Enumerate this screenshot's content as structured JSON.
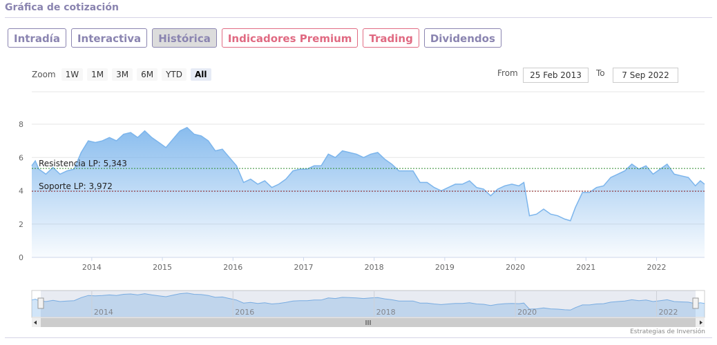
{
  "header": {
    "title": "Gráfica de cotización"
  },
  "tabs": [
    {
      "label": "Intradía",
      "active": false,
      "premium": false
    },
    {
      "label": "Interactiva",
      "active": false,
      "premium": false
    },
    {
      "label": "Histórica",
      "active": true,
      "premium": false
    },
    {
      "label": "Indicadores Premium",
      "active": false,
      "premium": true
    },
    {
      "label": "Trading",
      "active": false,
      "premium": true
    },
    {
      "label": "Dividendos",
      "active": false,
      "premium": false
    }
  ],
  "zoom": {
    "label": "Zoom",
    "buttons": [
      "1W",
      "1M",
      "3M",
      "6M",
      "YTD",
      "All"
    ],
    "active": "All"
  },
  "range": {
    "from_label": "From",
    "from_value": "25 Feb 2013",
    "to_label": "To",
    "to_value": "7 Sep 2022"
  },
  "credit": "Estrategias de Inversión",
  "colors": {
    "accent": "#8a84b0",
    "premium": "#e06a82",
    "area": "#7cb5ec",
    "resistance": "#2e8b2e",
    "support": "#8b1a1a"
  },
  "chart_data": {
    "type": "area",
    "ylim": [
      0,
      8
    ],
    "y_ticks": [
      "0",
      "2",
      "4",
      "6",
      "8"
    ],
    "x_ticks": [
      "2014",
      "2015",
      "2016",
      "2017",
      "2018",
      "2019",
      "2020",
      "2021",
      "2022"
    ],
    "navigator_ticks": [
      "2014",
      "2016",
      "2018",
      "2020",
      "2022"
    ],
    "x_range": [
      2013.15,
      2022.68
    ],
    "grid": true,
    "annotations": [
      {
        "label": "Resistencia LP: 5,343",
        "value": 5.343,
        "color": "#2e8b2e"
      },
      {
        "label": "Soporte LP: 3,972",
        "value": 3.972,
        "color": "#8b1a1a"
      }
    ],
    "series": [
      {
        "x": [
          2013.15,
          2013.2,
          2013.25,
          2013.35,
          2013.45,
          2013.55,
          2013.65,
          2013.75,
          2013.85,
          2013.95,
          2014.05,
          2014.15,
          2014.25,
          2014.35,
          2014.45,
          2014.55,
          2014.65,
          2014.75,
          2014.85,
          2014.95,
          2015.05,
          2015.15,
          2015.25,
          2015.35,
          2015.45,
          2015.55,
          2015.65,
          2015.75,
          2015.85,
          2015.95,
          2016.05,
          2016.15,
          2016.25,
          2016.35,
          2016.45,
          2016.55,
          2016.65,
          2016.75,
          2016.85,
          2016.95,
          2017.05,
          2017.15,
          2017.25,
          2017.35,
          2017.45,
          2017.55,
          2017.65,
          2017.75,
          2017.85,
          2017.95,
          2018.05,
          2018.15,
          2018.25,
          2018.35,
          2018.45,
          2018.55,
          2018.65,
          2018.75,
          2018.85,
          2018.95,
          2019.05,
          2019.15,
          2019.25,
          2019.35,
          2019.45,
          2019.55,
          2019.65,
          2019.75,
          2019.85,
          2019.95,
          2020.05,
          2020.12,
          2020.2,
          2020.3,
          2020.4,
          2020.5,
          2020.6,
          2020.7,
          2020.78,
          2020.85,
          2020.95,
          2021.05,
          2021.15,
          2021.25,
          2021.35,
          2021.45,
          2021.55,
          2021.65,
          2021.75,
          2021.85,
          2021.95,
          2022.05,
          2022.15,
          2022.25,
          2022.35,
          2022.45,
          2022.55,
          2022.62,
          2022.68
        ],
        "values": [
          5.5,
          5.8,
          5.3,
          5.0,
          5.4,
          5.0,
          5.2,
          5.3,
          6.3,
          7.0,
          6.9,
          7.0,
          7.2,
          7.0,
          7.4,
          7.5,
          7.2,
          7.6,
          7.2,
          6.9,
          6.6,
          7.1,
          7.6,
          7.8,
          7.4,
          7.3,
          7.0,
          6.4,
          6.5,
          6.0,
          5.5,
          4.5,
          4.7,
          4.4,
          4.6,
          4.2,
          4.4,
          4.7,
          5.2,
          5.3,
          5.3,
          5.5,
          5.5,
          6.2,
          6.0,
          6.4,
          6.3,
          6.2,
          6.0,
          6.2,
          6.3,
          5.9,
          5.6,
          5.2,
          5.2,
          5.2,
          4.5,
          4.5,
          4.2,
          4.0,
          4.2,
          4.4,
          4.4,
          4.6,
          4.2,
          4.1,
          3.7,
          4.1,
          4.3,
          4.4,
          4.3,
          4.5,
          2.5,
          2.6,
          2.9,
          2.6,
          2.5,
          2.3,
          2.2,
          3.0,
          3.9,
          3.9,
          4.2,
          4.3,
          4.8,
          5.0,
          5.2,
          5.6,
          5.3,
          5.5,
          5.0,
          5.3,
          5.6,
          5.0,
          4.9,
          4.8,
          4.3,
          4.6,
          4.4
        ]
      }
    ]
  }
}
